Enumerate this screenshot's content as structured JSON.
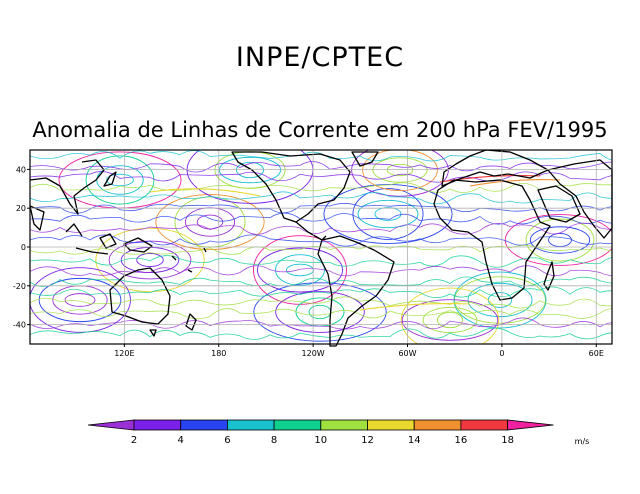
{
  "title": "INPE/CPTEC",
  "subtitle": "Anomalia de Linhas de Corrente em 200 hPa FEV/1995",
  "map": {
    "lat_range": [
      -50,
      50
    ],
    "lon_range_east": [
      60,
      430
    ],
    "lat_ticks": [
      {
        "value": 40,
        "label": "40"
      },
      {
        "value": 20,
        "label": "20"
      },
      {
        "value": 0,
        "label": "0"
      },
      {
        "value": -20,
        "label": "-20"
      },
      {
        "value": -40,
        "label": "-40"
      }
    ],
    "lon_ticks": [
      {
        "value": 120,
        "label": "120E"
      },
      {
        "value": 180,
        "label": "180"
      },
      {
        "value": 240,
        "label": "120W"
      },
      {
        "value": 300,
        "label": "60W"
      },
      {
        "value": 360,
        "label": "0"
      },
      {
        "value": 420,
        "label": "60E"
      }
    ],
    "grid": true,
    "land_color": "#ffffff",
    "coast_color": "#000000"
  },
  "colorbar": {
    "labels": [
      "2",
      "4",
      "6",
      "8",
      "10",
      "12",
      "14",
      "16",
      "18"
    ],
    "colors": [
      "#9b30d8",
      "#7a20e8",
      "#2844f0",
      "#18c0d0",
      "#10d090",
      "#a0e040",
      "#e8d830",
      "#f09030",
      "#f03840",
      "#f020a0"
    ],
    "unit": "m/s"
  }
}
